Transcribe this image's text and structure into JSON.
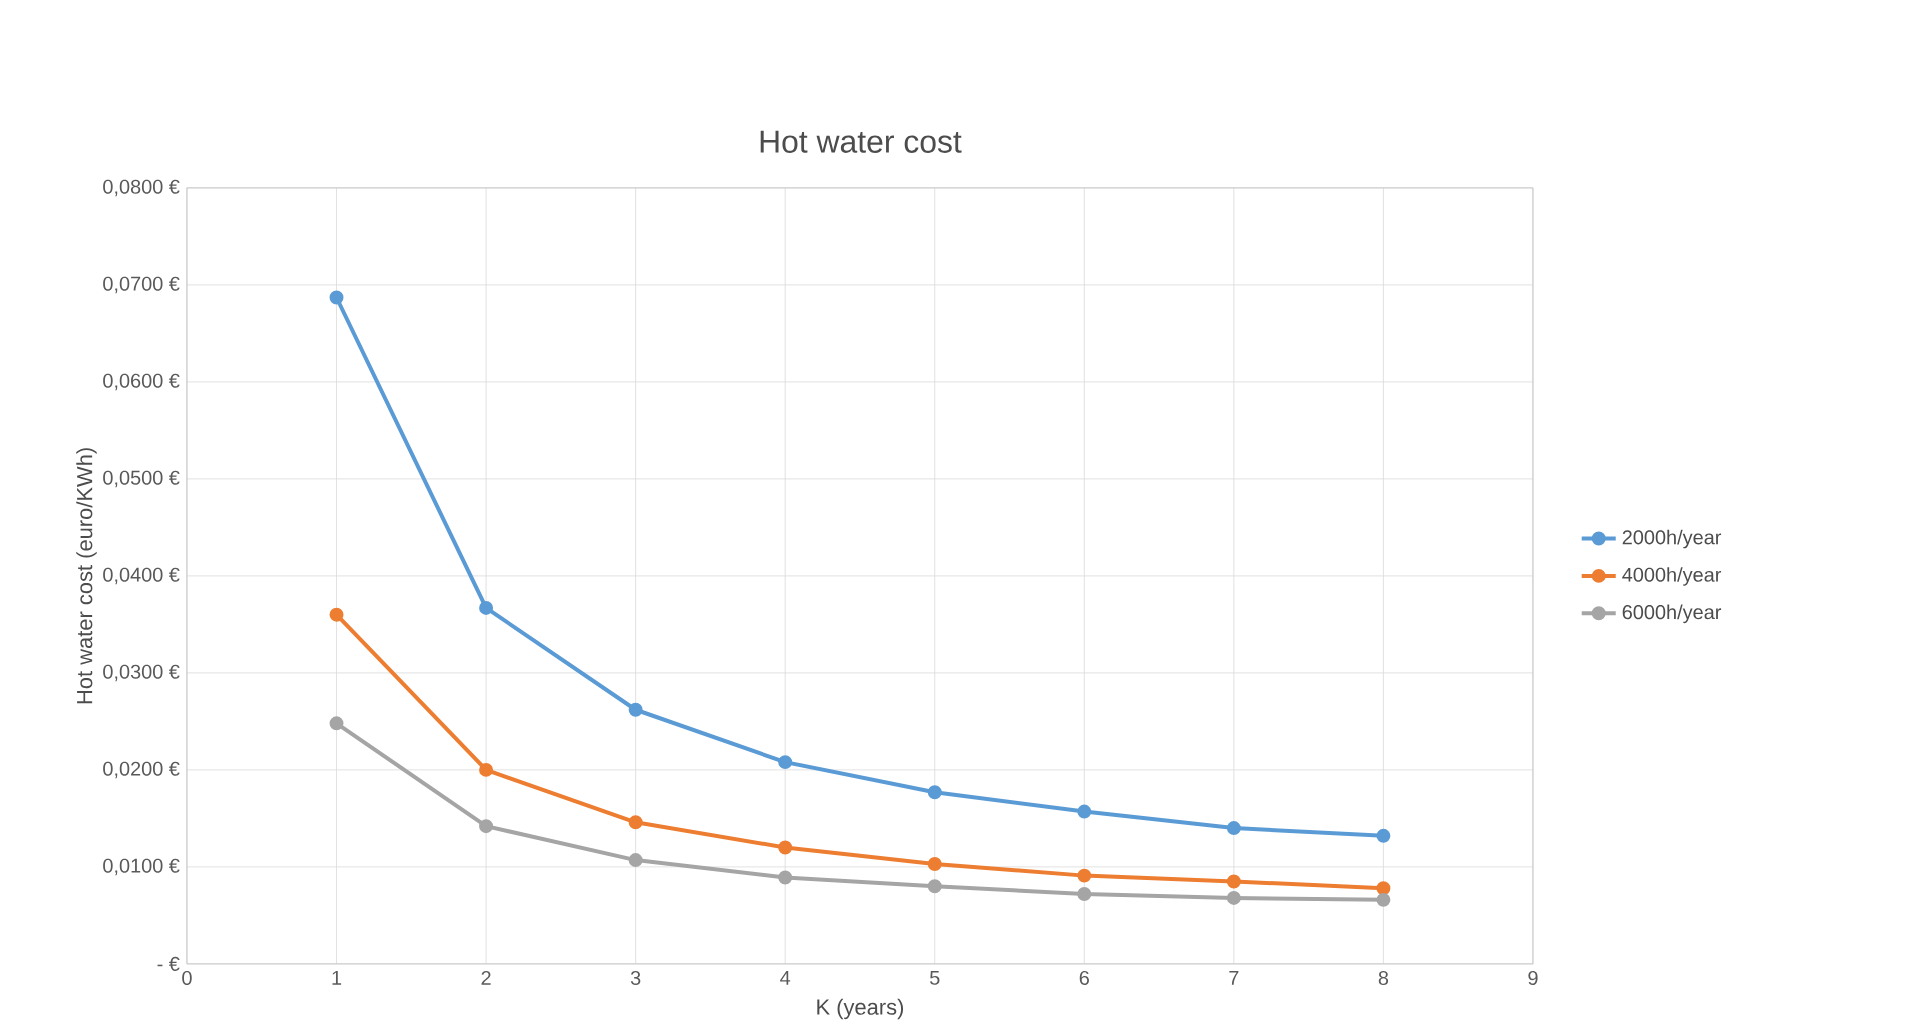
{
  "chart_data": {
    "type": "line",
    "title": "Hot water cost",
    "xlabel": "K (years)",
    "ylabel": "Hot water cost (euro/KWh)",
    "x": [
      1,
      2,
      3,
      4,
      5,
      6,
      7,
      8
    ],
    "series": [
      {
        "name": "2000h/year",
        "color": "#5b9bd5",
        "values": [
          0.0687,
          0.0367,
          0.0262,
          0.0208,
          0.0177,
          0.0157,
          0.014,
          0.0132
        ]
      },
      {
        "name": "4000h/year",
        "color": "#ed7d31",
        "values": [
          0.036,
          0.02,
          0.0146,
          0.012,
          0.0103,
          0.0091,
          0.0085,
          0.0078
        ]
      },
      {
        "name": "6000h/year",
        "color": "#a5a5a5",
        "values": [
          0.0248,
          0.0142,
          0.0107,
          0.0089,
          0.008,
          0.0072,
          0.0068,
          0.0066
        ]
      }
    ],
    "xlim": [
      0,
      9
    ],
    "xticks": [
      0,
      1,
      2,
      3,
      4,
      5,
      6,
      7,
      8,
      9
    ],
    "ylim": [
      0,
      0.08
    ],
    "yticks": [
      {
        "value": 0,
        "label": "-  €"
      },
      {
        "value": 0.01,
        "label": "0,0100 €"
      },
      {
        "value": 0.02,
        "label": "0,0200 €"
      },
      {
        "value": 0.03,
        "label": "0,0300 €"
      },
      {
        "value": 0.04,
        "label": "0,0400 €"
      },
      {
        "value": 0.05,
        "label": "0,0500 €"
      },
      {
        "value": 0.06,
        "label": "0,0600 €"
      },
      {
        "value": 0.07,
        "label": "0,0700 €"
      },
      {
        "value": 0.08,
        "label": "0,0800 €"
      }
    ],
    "grid": true,
    "legend": "right",
    "marker": "circle",
    "line_style": "solid"
  }
}
